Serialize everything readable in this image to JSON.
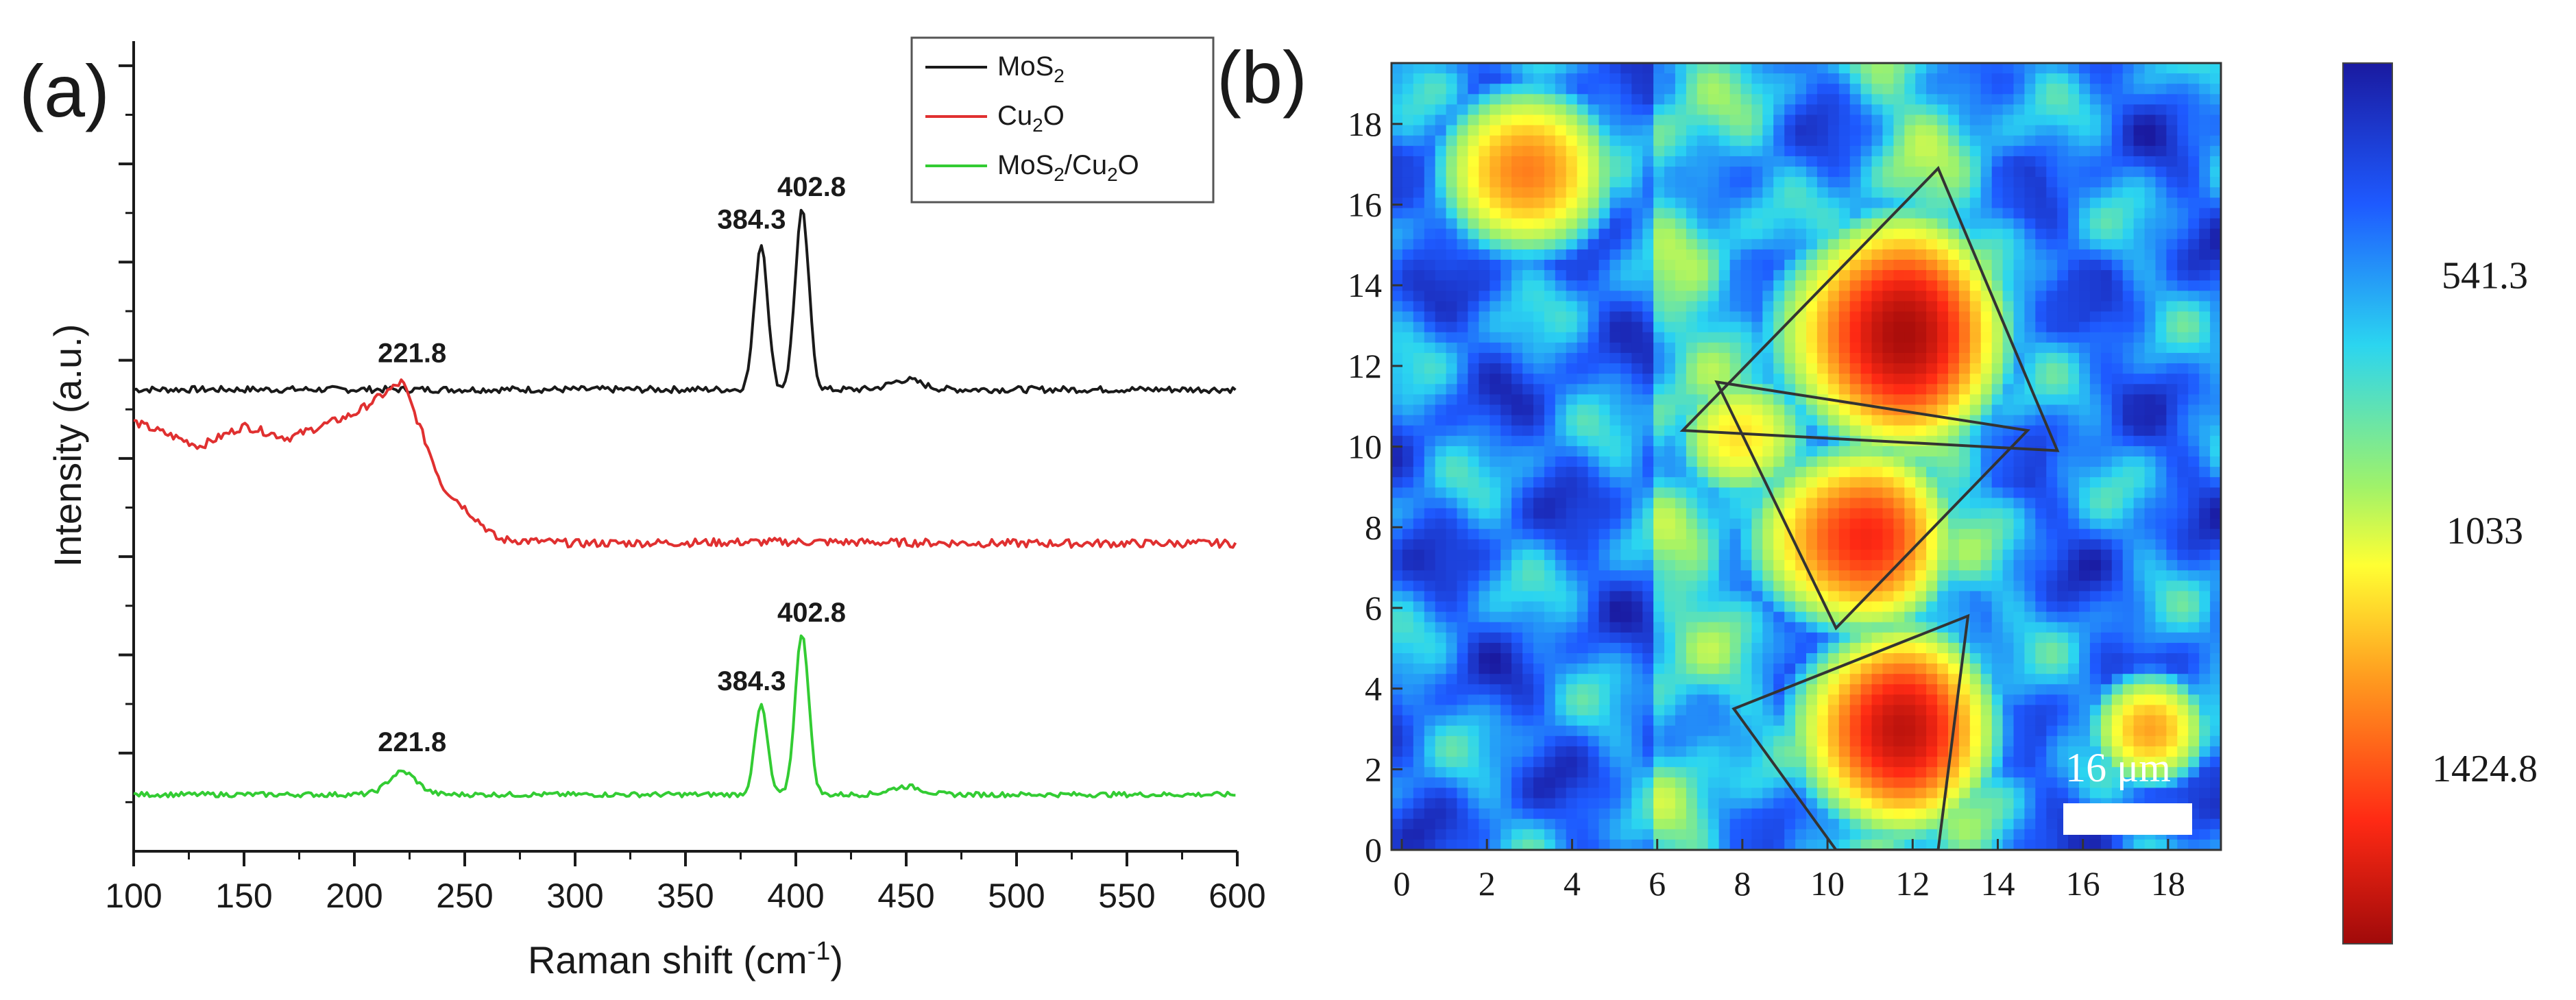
{
  "panel_labels": {
    "a": "(a)",
    "b": "(b)"
  },
  "chart_data": [
    {
      "type": "line",
      "panel": "(a)",
      "xlabel": "Raman shift (cm",
      "xlabel_sup": "-1",
      "xlabel_end": ")",
      "ylabel": "Intensity (a.u.)",
      "xlim": [
        100,
        600
      ],
      "x_ticks": [
        "100",
        "150",
        "200",
        "250",
        "300",
        "350",
        "400",
        "450",
        "500",
        "550",
        "600"
      ],
      "legend": {
        "position": "top-right"
      },
      "series": [
        {
          "name": "MoS2",
          "legend_base": "MoS",
          "legend_sub": "2",
          "legend_tail": "",
          "color": "#1a1a1a",
          "baseline": 0.57,
          "noise": 0.004,
          "slope": 0.0,
          "points": [
            [
              100,
              0.57
            ],
            [
              200,
              0.575
            ],
            [
              300,
              0.57
            ],
            [
              370,
              0.572
            ],
            [
              384.3,
              0.75
            ],
            [
              393,
              0.62
            ],
            [
              402.8,
              0.79
            ],
            [
              415,
              0.575
            ],
            [
              450,
              0.58
            ],
            [
              500,
              0.57
            ],
            [
              560,
              0.575
            ],
            [
              600,
              0.57
            ]
          ],
          "peaks": [
            {
              "x": 384.3,
              "h": 0.18,
              "w": 4.2
            },
            {
              "x": 402.8,
              "h": 0.22,
              "w": 4.4
            },
            {
              "x": 450,
              "h": 0.012,
              "w": 10
            }
          ],
          "labels": [
            {
              "x": 384.3,
              "y": 0.75,
              "text": "384.3"
            },
            {
              "x": 402.8,
              "y": 0.79,
              "text": "402.8"
            }
          ]
        },
        {
          "name": "Cu2O",
          "legend_base": "Cu",
          "legend_sub": "2",
          "legend_tail": "O",
          "color": "#e03030",
          "baseline": 0.38,
          "noise": 0.005,
          "slope": 0.0,
          "points": [
            [
              100,
              0.53
            ],
            [
              130,
              0.5
            ],
            [
              150,
              0.525
            ],
            [
              170,
              0.51
            ],
            [
              200,
              0.54
            ],
            [
              221.8,
              0.58
            ],
            [
              240,
              0.45
            ],
            [
              265,
              0.385
            ],
            [
              300,
              0.38
            ],
            [
              400,
              0.382
            ],
            [
              500,
              0.38
            ],
            [
              600,
              0.38
            ]
          ],
          "peaks": [],
          "labels": [
            {
              "x": 221.8,
              "y": 0.585,
              "text": "221.8"
            }
          ]
        },
        {
          "name": "MoS2/Cu2O",
          "legend_base": "MoS",
          "legend_sub": "2",
          "legend_tail": "/Cu",
          "legend_sub2": "2",
          "legend_tail2": "O",
          "color": "#33cc33",
          "baseline": 0.07,
          "noise": 0.003,
          "slope": 0.0,
          "points": [
            [
              100,
              0.07
            ],
            [
              150,
              0.075
            ],
            [
              200,
              0.085
            ],
            [
              221.8,
              0.1
            ],
            [
              240,
              0.07
            ],
            [
              300,
              0.06
            ],
            [
              370,
              0.065
            ],
            [
              384.3,
              0.17
            ],
            [
              393,
              0.08
            ],
            [
              402.8,
              0.26
            ],
            [
              415,
              0.07
            ],
            [
              450,
              0.075
            ],
            [
              500,
              0.06
            ],
            [
              600,
              0.06
            ]
          ],
          "peaks": [
            {
              "x": 221.8,
              "h": 0.028,
              "w": 9
            },
            {
              "x": 384.3,
              "h": 0.11,
              "w": 4.0
            },
            {
              "x": 402.8,
              "h": 0.2,
              "w": 4.3
            },
            {
              "x": 450,
              "h": 0.01,
              "w": 10
            }
          ],
          "labels": [
            {
              "x": 221.8,
              "y": 0.105,
              "text": "221.8"
            },
            {
              "x": 384.3,
              "y": 0.18,
              "text": "384.3"
            },
            {
              "x": 402.8,
              "y": 0.265,
              "text": "402.8"
            }
          ]
        }
      ]
    },
    {
      "type": "heatmap",
      "panel": "(b)",
      "xlim": [
        0,
        19
      ],
      "ylim": [
        0,
        19
      ],
      "x_ticks": [
        "0",
        "2",
        "4",
        "6",
        "8",
        "10",
        "12",
        "14",
        "16",
        "18"
      ],
      "y_ticks": [
        "0",
        "2",
        "4",
        "6",
        "8",
        "10",
        "12",
        "14",
        "16",
        "18"
      ],
      "scale_bar": "16 μm",
      "colorbar": {
        "ticks": [
          "541.3",
          "1033",
          "1424.8"
        ],
        "colors": [
          "#1a1aa0",
          "#1e5aff",
          "#2bd5f0",
          "#9ff26a",
          "#ffff33",
          "#ff9a1f",
          "#ff2a14",
          "#a00a0a"
        ]
      },
      "regions": [
        {
          "cx": 11.5,
          "cy": 12.5,
          "r": 3.2,
          "value": 0.15
        },
        {
          "cx": 10.5,
          "cy": 7.5,
          "r": 2.6,
          "value": 0.2
        },
        {
          "cx": 11.5,
          "cy": 2.8,
          "r": 2.8,
          "value": 0.18
        },
        {
          "cx": 3.0,
          "cy": 16.5,
          "r": 2.4,
          "value": 0.25
        },
        {
          "cx": 17.5,
          "cy": 2.8,
          "r": 1.6,
          "value": 0.3
        },
        {
          "cx": 8.2,
          "cy": 10.0,
          "r": 1.7,
          "value": 0.45
        }
      ],
      "outlines": [
        [
          [
            6.6,
            10.4
          ],
          [
            12.6,
            16.9
          ],
          [
            15.4,
            9.9
          ]
        ],
        [
          [
            7.4,
            11.6
          ],
          [
            14.7,
            10.4
          ],
          [
            10.2,
            5.5
          ]
        ],
        [
          [
            7.8,
            3.5
          ],
          [
            13.3,
            5.8
          ],
          [
            12.6,
            0
          ],
          [
            10.2,
            0
          ]
        ]
      ]
    }
  ]
}
